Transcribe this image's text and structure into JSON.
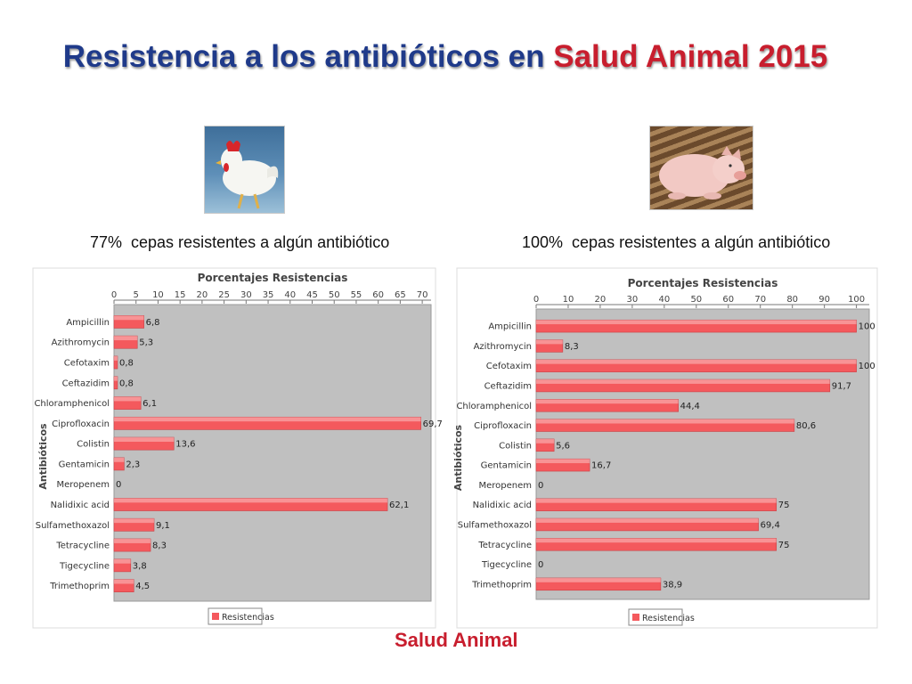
{
  "slide": {
    "title_part1": "Resistencia a los antibióticos en ",
    "title_part2": "Salud Animal 2015",
    "footer": "Salud Animal",
    "accent_color": "#c81e2e",
    "title_color": "#1f3a8a"
  },
  "images": {
    "left": "chicken-photo",
    "right": "pig-photo"
  },
  "chart_data": [
    {
      "type": "bar",
      "orientation": "horizontal",
      "caption": "77%  cepas resistentes a algún antibiótico",
      "title": "Porcentajes Resistencias",
      "ylabel": "Antibióticos",
      "xlabel": "",
      "xlim": [
        0,
        72
      ],
      "xticks": [
        0,
        5,
        10,
        15,
        20,
        25,
        30,
        35,
        40,
        45,
        50,
        55,
        60,
        65,
        70
      ],
      "legend": {
        "position": "bottom",
        "label": "Resistencias"
      },
      "grid": false,
      "bar_color": "#f4595d",
      "categories": [
        "Ampicillin",
        "Azithromycin",
        "Cefotaxim",
        "Ceftazidim",
        "Chloramphenicol",
        "Ciprofloxacin",
        "Colistin",
        "Gentamicin",
        "Meropenem",
        "Nalidixic acid",
        "Sulfamethoxazol",
        "Tetracycline",
        "Tigecycline",
        "Trimethoprim"
      ],
      "values": [
        6.8,
        5.3,
        0.8,
        0.8,
        6.1,
        69.7,
        13.6,
        2.3,
        0,
        62.1,
        9.1,
        8.3,
        3.8,
        4.5
      ],
      "value_labels": [
        "6,8",
        "5,3",
        "0,8",
        "0,8",
        "6,1",
        "69,7",
        "13,6",
        "2,3",
        "0",
        "62,1",
        "9,1",
        "8,3",
        "3,8",
        "4,5"
      ]
    },
    {
      "type": "bar",
      "orientation": "horizontal",
      "caption": "100%  cepas resistentes a algún antibiótico",
      "title": "Porcentajes Resistencias",
      "ylabel": "Antibióticos",
      "xlabel": "",
      "xlim": [
        0,
        104
      ],
      "xticks": [
        0,
        10,
        20,
        30,
        40,
        50,
        60,
        70,
        80,
        90,
        100
      ],
      "legend": {
        "position": "bottom",
        "label": "Resistencias"
      },
      "grid": false,
      "bar_color": "#f4595d",
      "categories": [
        "Ampicillin",
        "Azithromycin",
        "Cefotaxim",
        "Ceftazidim",
        "Chloramphenicol",
        "Ciprofloxacin",
        "Colistin",
        "Gentamicin",
        "Meropenem",
        "Nalidixic acid",
        "Sulfamethoxazol",
        "Tetracycline",
        "Tigecycline",
        "Trimethoprim"
      ],
      "values": [
        100,
        8.3,
        100,
        91.7,
        44.4,
        80.6,
        5.6,
        16.7,
        0,
        75,
        69.4,
        75,
        0,
        38.9
      ],
      "value_labels": [
        "100",
        "8,3",
        "100",
        "91,7",
        "44,4",
        "80,6",
        "5,6",
        "16,7",
        "0",
        "75",
        "69,4",
        "75",
        "0",
        "38,9"
      ]
    }
  ]
}
